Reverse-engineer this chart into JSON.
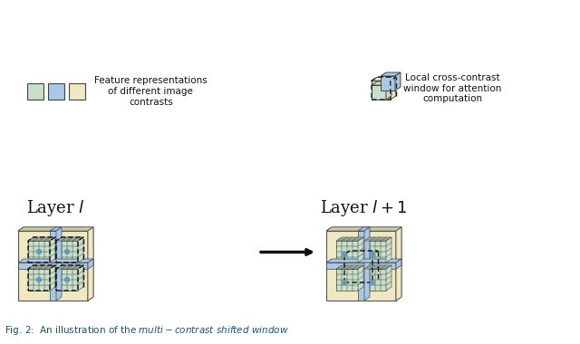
{
  "title": "Layer $l$ and Layer $l+1$ diagram",
  "layer_l_title": "Layer $l$",
  "layer_l1_title": "Layer $l+1$",
  "color_green": "#c8dfc8",
  "color_blue": "#a8c8e8",
  "color_yellow": "#f0e8c0",
  "color_dark": "#404040",
  "color_white": "#ffffff",
  "color_bg": "#ffffff",
  "fig_caption": "Fig. 2: An illustration of the multi-contrast shifted window",
  "legend_text1": "Feature representations\nof different image\ncontrasts",
  "legend_text2": "Local cross-contrast\nwindow for attention\ncomputation"
}
